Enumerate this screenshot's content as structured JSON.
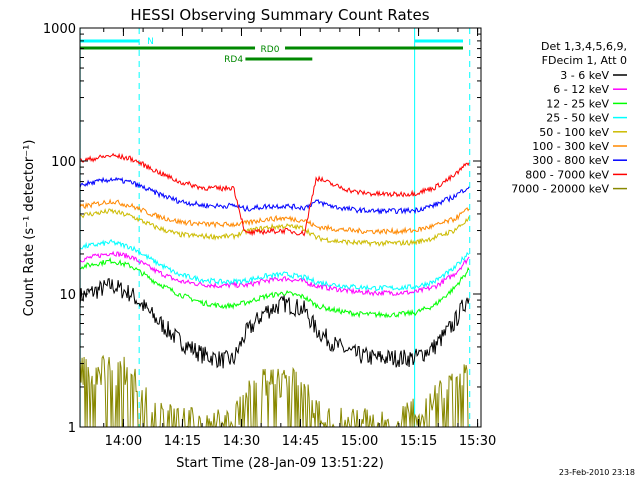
{
  "chart_data": {
    "type": "line",
    "title": "HESSI Observing Summary Count Rates",
    "xlabel": "Start Time (28-Jan-09 13:51:22)",
    "ylabel": "Count Rate (s⁻¹ detector⁻¹)",
    "ylim": [
      1,
      1000
    ],
    "yscale": "log",
    "xlim_minutes": [
      -2.4,
      99.5
    ],
    "x_ticks": [
      "14:00",
      "14:15",
      "14:30",
      "14:45",
      "15:00",
      "15:15",
      "15:30"
    ],
    "y_ticks": [
      "1",
      "10",
      "100",
      "1000"
    ],
    "legend_header": [
      "Det 1,3,4,5,6,9,",
      "FDecim 1, Att 0"
    ],
    "legend_position": "right",
    "timestamp": "23-Feb-2010 23:18",
    "series": [
      {
        "name": "3 - 6 keV",
        "color": "#000000",
        "time": [
          "13:49",
          "13:57",
          "14:02",
          "14:08",
          "14:14",
          "14:20",
          "14:25",
          "14:28",
          "14:31",
          "14:36",
          "14:41",
          "14:46",
          "14:49",
          "14:54",
          "14:59",
          "15:04",
          "15:09",
          "15:14",
          "15:19",
          "15:24",
          "15:28"
        ],
        "values": [
          9.6,
          11.6,
          10.0,
          6.6,
          4.5,
          3.5,
          3.2,
          3.2,
          5.0,
          7.4,
          8.5,
          7.6,
          5.4,
          4.1,
          3.5,
          3.3,
          3.3,
          3.3,
          4.0,
          6.0,
          10.0
        ]
      },
      {
        "name": "6 - 12 keV",
        "color": "#ff00ff",
        "time": [
          "13:49",
          "13:57",
          "14:02",
          "14:08",
          "14:14",
          "14:20",
          "14:25",
          "14:28",
          "14:31",
          "14:36",
          "14:41",
          "14:46",
          "14:49",
          "14:54",
          "14:59",
          "15:04",
          "15:09",
          "15:14",
          "15:19",
          "15:24",
          "15:28"
        ],
        "values": [
          18,
          20.5,
          19,
          15,
          12.5,
          11.8,
          11.5,
          11.7,
          11.6,
          12.6,
          13.1,
          12.4,
          11.5,
          10.9,
          10.4,
          10.2,
          10.2,
          10.3,
          11.3,
          14,
          19
        ]
      },
      {
        "name": "12 - 25 keV",
        "color": "#00ff00",
        "time": [
          "13:49",
          "13:57",
          "14:02",
          "14:08",
          "14:14",
          "14:20",
          "14:25",
          "14:28",
          "14:31",
          "14:36",
          "14:41",
          "14:46",
          "14:49",
          "14:54",
          "14:59",
          "15:04",
          "15:09",
          "15:14",
          "15:19",
          "15:24",
          "15:28"
        ],
        "values": [
          16,
          17.8,
          16.2,
          12.4,
          10,
          8.6,
          8.1,
          8.2,
          8.6,
          9.6,
          10.2,
          9.5,
          8.2,
          7.5,
          7.1,
          7.0,
          7.0,
          7.2,
          8.2,
          11,
          15.5
        ]
      },
      {
        "name": "25 - 50 keV",
        "color": "#00ffff",
        "time": [
          "13:49",
          "13:57",
          "14:02",
          "14:08",
          "14:14",
          "14:20",
          "14:25",
          "14:28",
          "14:31",
          "14:36",
          "14:41",
          "14:46",
          "14:49",
          "14:54",
          "14:59",
          "15:04",
          "15:09",
          "15:14",
          "15:19",
          "15:24",
          "15:28"
        ],
        "values": [
          22.5,
          24.5,
          22.5,
          17.5,
          14,
          12.8,
          12.3,
          12.4,
          12.6,
          13.6,
          14.1,
          13.3,
          12.3,
          11.7,
          11.3,
          11.1,
          11.1,
          11.3,
          12.4,
          15.5,
          21
        ]
      },
      {
        "name": "50 - 100 keV",
        "color": "#ccbb00",
        "time": [
          "13:49",
          "13:57",
          "14:02",
          "14:08",
          "14:14",
          "14:20",
          "14:25",
          "14:28",
          "14:31",
          "14:36",
          "14:41",
          "14:46",
          "14:49",
          "14:54",
          "14:59",
          "15:04",
          "15:09",
          "15:14",
          "15:19",
          "15:24",
          "15:28"
        ],
        "values": [
          39,
          42,
          38.5,
          32,
          28,
          27.2,
          27,
          27.2,
          29.5,
          31.5,
          32.5,
          31.2,
          26.5,
          25,
          24.3,
          24.1,
          24.1,
          24.4,
          26.5,
          30,
          37
        ]
      },
      {
        "name": "100 - 300 keV",
        "color": "#ff8800",
        "time": [
          "13:49",
          "13:57",
          "14:02",
          "14:08",
          "14:14",
          "14:20",
          "14:25",
          "14:28",
          "14:31",
          "14:36",
          "14:41",
          "14:46",
          "14:49",
          "14:54",
          "14:59",
          "15:04",
          "15:09",
          "15:14",
          "15:19",
          "15:24",
          "15:28"
        ],
        "values": [
          45,
          50,
          46,
          39,
          35,
          33.6,
          33.2,
          33.4,
          34,
          36.5,
          37.2,
          35.8,
          32,
          30.8,
          29.8,
          29.6,
          29.6,
          30,
          32.5,
          36.5,
          44
        ]
      },
      {
        "name": "300 - 800 keV",
        "color": "#0000ff",
        "time": [
          "13:49",
          "13:57",
          "14:02",
          "14:08",
          "14:14",
          "14:20",
          "14:25",
          "14:28",
          "14:31",
          "14:36",
          "14:41",
          "14:46",
          "14:49",
          "14:54",
          "14:59",
          "15:04",
          "15:09",
          "15:14",
          "15:19",
          "15:24",
          "15:28"
        ],
        "values": [
          66,
          73,
          69,
          58,
          50,
          46.5,
          45.8,
          46.5,
          43.5,
          45.5,
          46,
          44.5,
          49.5,
          45,
          42.8,
          42,
          42,
          42.6,
          46.5,
          54,
          65
        ]
      },
      {
        "name": "800 - 7000 keV",
        "color": "#ff0000",
        "time": [
          "13:49",
          "13:57",
          "14:02",
          "14:08",
          "14:14",
          "14:20",
          "14:25",
          "14:28",
          "14:31",
          "14:36",
          "14:41",
          "14:46",
          "14:49",
          "14:54",
          "14:59",
          "15:04",
          "15:09",
          "15:14",
          "15:19",
          "15:24",
          "15:28"
        ],
        "values": [
          100,
          110,
          104,
          85,
          70,
          63,
          62,
          63.5,
          28.5,
          29.5,
          30,
          28.5,
          75,
          65,
          58.5,
          56.5,
          56,
          57,
          63,
          77,
          100
        ]
      },
      {
        "name": "7000 - 20000 keV",
        "color": "#888800",
        "time": [
          "13:49",
          "13:57",
          "14:02",
          "14:08",
          "14:14",
          "14:20",
          "14:25",
          "14:28",
          "14:31",
          "14:36",
          "14:41",
          "14:46",
          "14:49",
          "14:54",
          "14:59",
          "15:04",
          "15:09",
          "15:14",
          "15:19",
          "15:24",
          "15:28"
        ],
        "values": [
          2.5,
          2.6,
          2.4,
          1.2,
          1,
          1,
          1,
          1,
          1.6,
          2.0,
          2.1,
          1.8,
          1.2,
          1,
          1,
          1,
          1,
          1.2,
          1.6,
          2.2,
          2.6
        ]
      }
    ],
    "annotations": [
      "N",
      "RD0",
      "RD4"
    ],
    "flag_color": "#008800",
    "night_color": "#00ffff"
  }
}
